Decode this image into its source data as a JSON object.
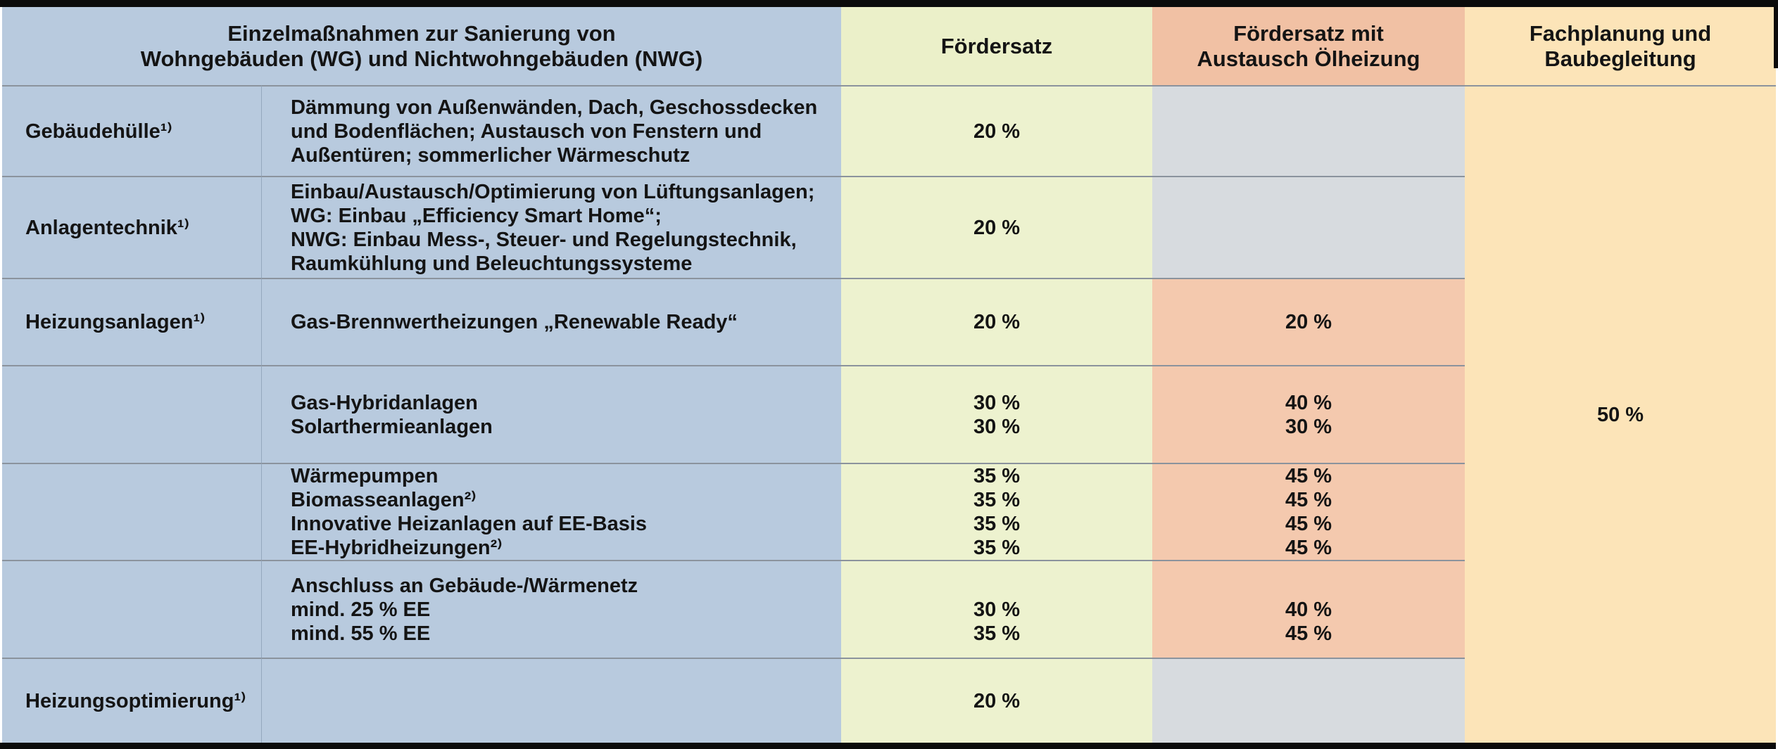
{
  "table": {
    "header": {
      "measures": "Einzelmaßnahmen zur Sanierung von\nWohngebäuden (WG) und Nichtwohngebäuden (NWG)",
      "rate": "Fördersatz",
      "rate_oil": "Fördersatz mit\nAustausch Ölheizung",
      "planning": "Fachplanung und\nBaubegleitung"
    },
    "rows": [
      {
        "category": "Gebäudehülle¹⁾",
        "description": "Dämmung von Außenwänden, Dach, Geschossdecken\nund Bodenflächen; Austausch von Fenstern und\nAußentüren; sommerlicher Wärmeschutz",
        "rate": "20 %",
        "rate_oil": ""
      },
      {
        "category": "Anlagentechnik¹⁾",
        "description": "Einbau/Austausch/Optimierung von Lüftungsanlagen;\nWG: Einbau „Efficiency Smart Home“;\nNWG: Einbau Mess-, Steuer- und Regelungstechnik,\nRaumkühlung und Beleuchtungssysteme",
        "rate": "20 %",
        "rate_oil": ""
      },
      {
        "category": "Heizungsanlagen¹⁾",
        "description": "Gas-Brennwertheizungen „Renewable Ready“",
        "rate": "20 %",
        "rate_oil": "20 %"
      },
      {
        "category": "",
        "description": "Gas-Hybridanlagen\nSolarthermieanlagen",
        "rate": "30 %\n30 %",
        "rate_oil": "40 %\n30 %"
      },
      {
        "category": "",
        "description": "Wärmepumpen\nBiomasseanlagen²⁾\nInnovative Heizanlagen auf EE-Basis\nEE-Hybridheizungen²⁾",
        "rate": "35 %\n35 %\n35 %\n35 %",
        "rate_oil": "45 %\n45 %\n45 %\n45 %"
      },
      {
        "category": "",
        "description": "Anschluss an Gebäude-/Wärmenetz\nmind. 25 % EE\nmind. 55 % EE",
        "rate": "30 %\n35 %",
        "rate_oil": "40 %\n45 %"
      },
      {
        "category": "Heizungsoptimierung¹⁾",
        "description": "",
        "rate": "20 %",
        "rate_oil": ""
      }
    ],
    "planning_value": "50 %"
  },
  "colors": {
    "category_blue": "#b8cade",
    "rate_green": "#edf2cf",
    "rate_oil_salmon": "#f4c9ae",
    "empty_gray": "#d7dbdf",
    "planning_peach": "#fce4b8",
    "grid_line": "#8b939d",
    "frame_black": "#0b0b0b"
  }
}
